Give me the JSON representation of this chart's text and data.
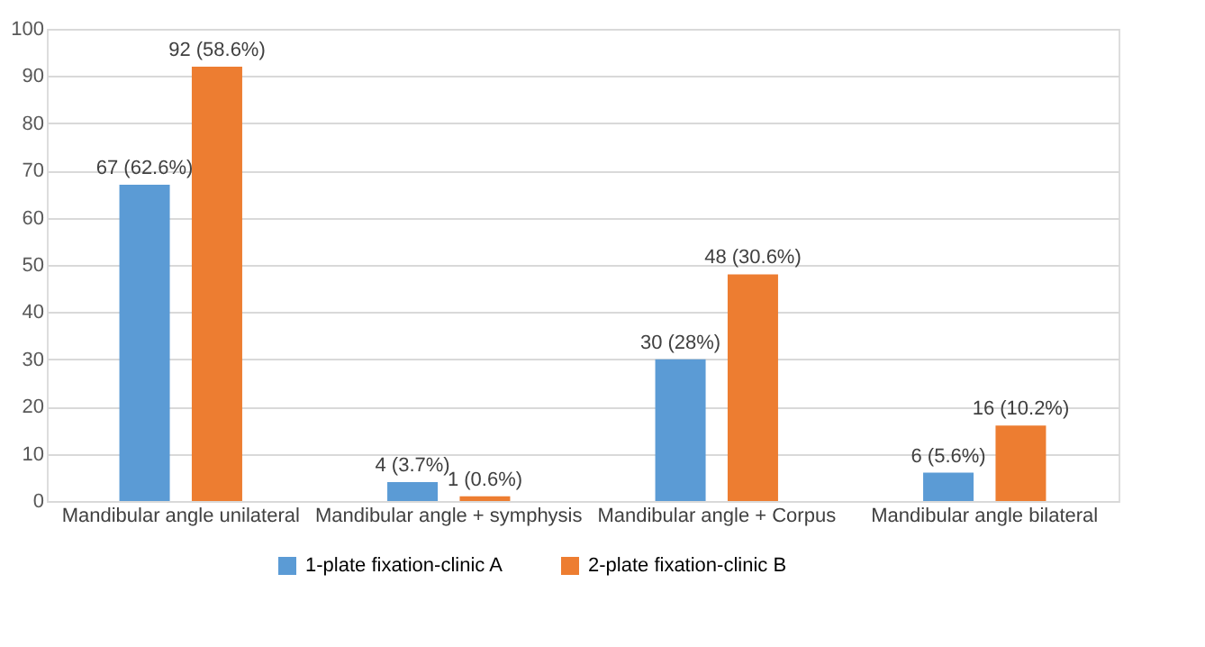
{
  "chart_data": {
    "type": "bar",
    "categories": [
      "Mandibular angle unilateral",
      "Mandibular angle + symphysis",
      "Mandibular angle + Corpus",
      "Mandibular angle bilateral"
    ],
    "series": [
      {
        "name": "1-plate fixation-clinic A",
        "color": "#5b9bd5",
        "values": [
          67,
          4,
          30,
          6
        ],
        "value_labels": [
          "67 (62.6%)",
          "4 (3.7%)",
          "30 (28%)",
          "6 (5.6%)"
        ]
      },
      {
        "name": "2-plate fixation-clinic B",
        "color": "#ed7d31",
        "values": [
          92,
          1,
          48,
          16
        ],
        "value_labels": [
          "92 (58.6%)",
          "1 (0.6%)",
          "48 (30.6%)",
          "16 (10.2%)"
        ]
      }
    ],
    "ylim": [
      0,
      100
    ],
    "yticks": [
      0,
      10,
      20,
      30,
      40,
      50,
      60,
      70,
      80,
      90,
      100
    ],
    "grid": "y",
    "legend": "bottom"
  }
}
